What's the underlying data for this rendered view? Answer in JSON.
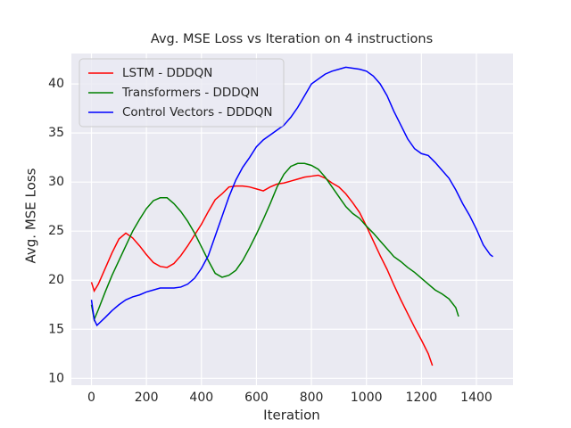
{
  "chart_data": {
    "type": "line",
    "title": "Avg. MSE Loss vs Iteration on 4 instructions",
    "x_label": "Iteration",
    "y_label": "Avg. MSE Loss",
    "xlim": [
      -73,
      1533
    ],
    "ylim": [
      9.3,
      43.1
    ],
    "xticks": [
      0,
      200,
      400,
      600,
      800,
      1000,
      1200,
      1400
    ],
    "yticks": [
      10,
      15,
      20,
      25,
      30,
      35,
      40
    ],
    "grid": true,
    "legend": "upper-left",
    "background": "#eaeaf2",
    "series": [
      {
        "name": "LSTM - DDDQN",
        "color": "#ff0000",
        "x": [
          0,
          10,
          25,
          50,
          75,
          100,
          125,
          150,
          175,
          200,
          225,
          250,
          275,
          300,
          325,
          350,
          375,
          400,
          425,
          450,
          475,
          500,
          525,
          550,
          575,
          600,
          625,
          650,
          675,
          700,
          725,
          750,
          775,
          800,
          825,
          850,
          875,
          900,
          925,
          950,
          975,
          1000,
          1025,
          1050,
          1075,
          1100,
          1125,
          1150,
          1175,
          1200,
          1225,
          1240
        ],
        "values": [
          19.8,
          18.9,
          19.6,
          21.2,
          22.8,
          24.2,
          24.8,
          24.3,
          23.5,
          22.6,
          21.8,
          21.4,
          21.3,
          21.7,
          22.5,
          23.5,
          24.6,
          25.7,
          27,
          28.2,
          28.8,
          29.5,
          29.6,
          29.6,
          29.5,
          29.3,
          29.1,
          29.5,
          29.8,
          29.9,
          30.1,
          30.3,
          30.5,
          30.6,
          30.7,
          30.4,
          29.9,
          29.5,
          28.8,
          27.9,
          26.9,
          25.5,
          24,
          22.5,
          21.1,
          19.5,
          18,
          16.6,
          15.2,
          13.9,
          12.5,
          11.3
        ]
      },
      {
        "name": "Transformers - DDDQN",
        "color": "#008000",
        "x": [
          0,
          10,
          25,
          50,
          75,
          100,
          125,
          150,
          175,
          200,
          225,
          250,
          275,
          300,
          325,
          350,
          375,
          400,
          425,
          450,
          475,
          500,
          525,
          550,
          575,
          600,
          625,
          650,
          675,
          700,
          725,
          750,
          775,
          800,
          825,
          850,
          875,
          900,
          925,
          950,
          975,
          1000,
          1025,
          1050,
          1075,
          1100,
          1125,
          1150,
          1175,
          1200,
          1225,
          1250,
          1275,
          1300,
          1325,
          1335
        ],
        "values": [
          17.5,
          16,
          17,
          18.8,
          20.5,
          22,
          23.5,
          25,
          26.2,
          27.3,
          28.1,
          28.4,
          28.4,
          27.8,
          27,
          26,
          24.8,
          23.4,
          22,
          20.7,
          20.3,
          20.5,
          21,
          22,
          23.3,
          24.7,
          26.2,
          27.8,
          29.5,
          30.8,
          31.6,
          31.9,
          31.9,
          31.7,
          31.3,
          30.5,
          29.5,
          28.5,
          27.5,
          26.8,
          26.3,
          25.5,
          24.8,
          24,
          23.2,
          22.4,
          21.9,
          21.3,
          20.8,
          20.2,
          19.6,
          19,
          18.6,
          18.1,
          17.2,
          16.3
        ]
      },
      {
        "name": "Control Vectors - DDDQN",
        "color": "#0000ff",
        "x": [
          0,
          10,
          20,
          50,
          75,
          100,
          125,
          150,
          175,
          200,
          225,
          250,
          275,
          300,
          325,
          350,
          375,
          400,
          425,
          450,
          475,
          500,
          525,
          550,
          575,
          600,
          625,
          650,
          675,
          700,
          725,
          750,
          775,
          800,
          825,
          850,
          875,
          900,
          925,
          950,
          975,
          1000,
          1025,
          1050,
          1075,
          1100,
          1125,
          1150,
          1175,
          1200,
          1225,
          1250,
          1275,
          1300,
          1325,
          1350,
          1375,
          1400,
          1425,
          1450,
          1460
        ],
        "values": [
          18,
          16,
          15.4,
          16.2,
          16.9,
          17.5,
          18,
          18.3,
          18.5,
          18.8,
          19,
          19.2,
          19.2,
          19.2,
          19.3,
          19.6,
          20.2,
          21.2,
          22.5,
          24.5,
          26.5,
          28.5,
          30.2,
          31.5,
          32.5,
          33.6,
          34.3,
          34.8,
          35.3,
          35.8,
          36.6,
          37.6,
          38.8,
          40,
          40.5,
          41,
          41.3,
          41.5,
          41.7,
          41.6,
          41.5,
          41.3,
          40.8,
          40,
          38.8,
          37.2,
          35.8,
          34.4,
          33.4,
          32.9,
          32.7,
          32,
          31.2,
          30.4,
          29.2,
          27.8,
          26.6,
          25.2,
          23.6,
          22.6,
          22.4
        ]
      }
    ]
  }
}
